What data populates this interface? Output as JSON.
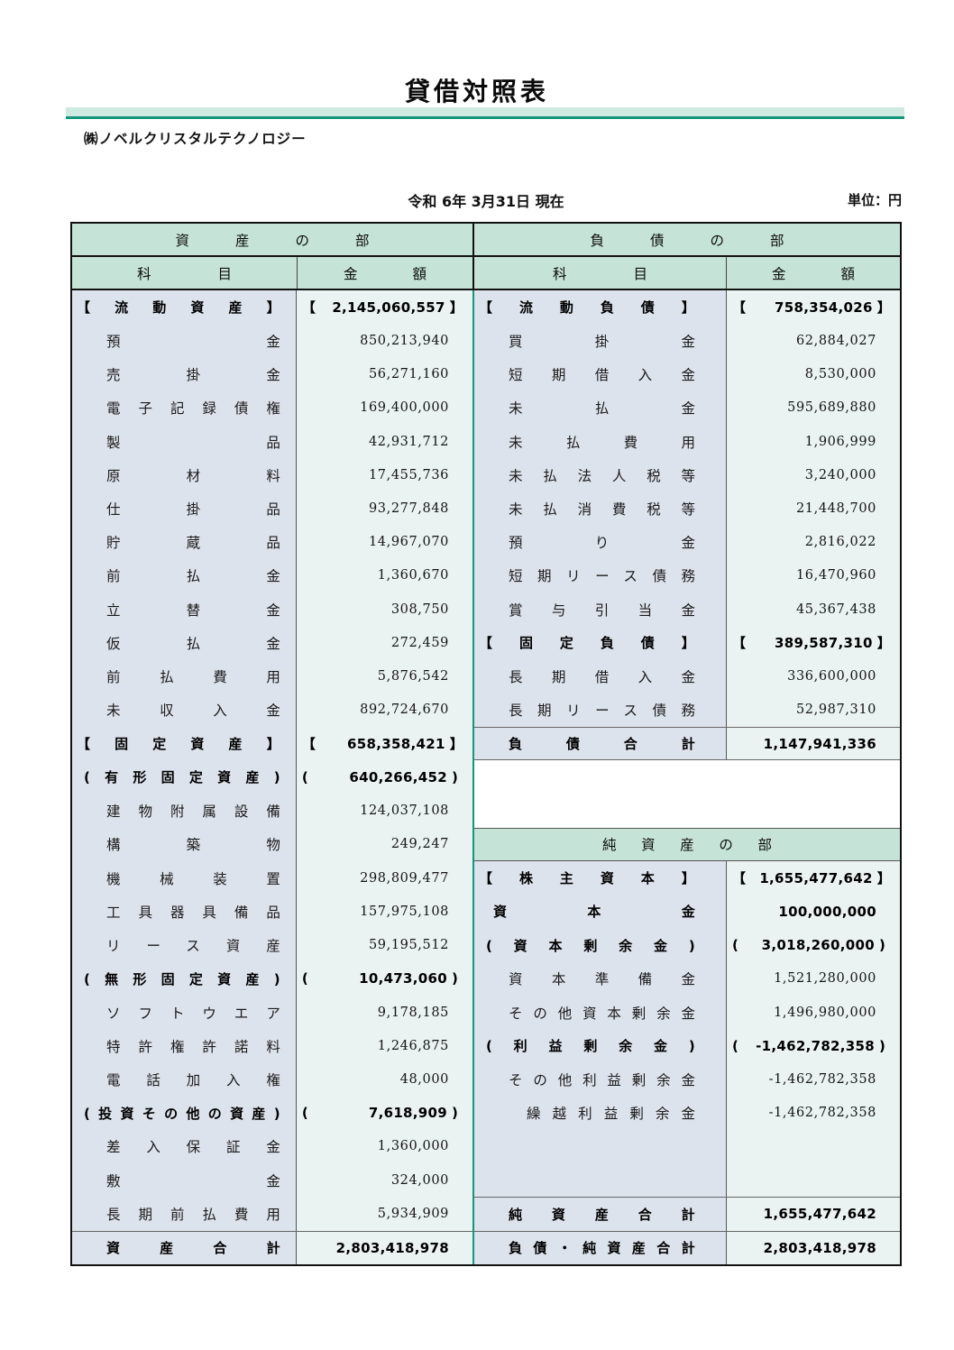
{
  "document": {
    "title": "貸借対照表",
    "company": "㈱ノベルクリスタルテクノロジー",
    "date": "令和 6年 3月31日 現在",
    "unit_label": "単位：円"
  },
  "table": {
    "assets": {
      "section_title": "資産の部",
      "account_header": "科目",
      "amount_header": "金額",
      "rows": [
        {
          "label": "【流動資産】",
          "open": "【",
          "value": "2,145,060,557",
          "close": "】",
          "indent": 0,
          "bold": true
        },
        {
          "label": "預金",
          "value": "850,213,940",
          "indent": 2
        },
        {
          "label": "売掛金",
          "value": "56,271,160",
          "indent": 2
        },
        {
          "label": "電子記録債権",
          "value": "169,400,000",
          "indent": 2
        },
        {
          "label": "製品",
          "value": "42,931,712",
          "indent": 2
        },
        {
          "label": "原材料",
          "value": "17,455,736",
          "indent": 2
        },
        {
          "label": "仕掛品",
          "value": "93,277,848",
          "indent": 2
        },
        {
          "label": "貯蔵品",
          "value": "14,967,070",
          "indent": 2
        },
        {
          "label": "前払金",
          "value": "1,360,670",
          "indent": 2
        },
        {
          "label": "立替金",
          "value": "308,750",
          "indent": 2
        },
        {
          "label": "仮払金",
          "value": "272,459",
          "indent": 2
        },
        {
          "label": "前払費用",
          "value": "5,876,542",
          "indent": 2
        },
        {
          "label": "未収入金",
          "value": "892,724,670",
          "indent": 2
        },
        {
          "label": "【固定資産】",
          "open": "【",
          "value": "658,358,421",
          "close": "】",
          "indent": 0,
          "bold": true
        },
        {
          "label": "(有形固定資産)",
          "open": "(",
          "value": "640,266,452",
          "close": ")",
          "indent": 1,
          "bold": true
        },
        {
          "label": "建物附属設備",
          "value": "124,037,108",
          "indent": 2
        },
        {
          "label": "構築物",
          "value": "249,247",
          "indent": 2
        },
        {
          "label": "機械装置",
          "value": "298,809,477",
          "indent": 2
        },
        {
          "label": "工具器具備品",
          "value": "157,975,108",
          "indent": 2
        },
        {
          "label": "リース資産",
          "value": "59,195,512",
          "indent": 2
        },
        {
          "label": "(無形固定資産)",
          "open": "(",
          "value": "10,473,060",
          "close": ")",
          "indent": 1,
          "bold": true
        },
        {
          "label": "ソフトウエア",
          "value": "9,178,185",
          "indent": 2
        },
        {
          "label": "特許権許諾料",
          "value": "1,246,875",
          "indent": 2
        },
        {
          "label": "電話加入権",
          "value": "48,000",
          "indent": 2
        },
        {
          "label": "(投資その他の資産)",
          "open": "(",
          "value": "7,618,909",
          "close": ")",
          "indent": 1,
          "bold": true
        },
        {
          "label": "差入保証金",
          "value": "1,360,000",
          "indent": 2
        },
        {
          "label": "敷金",
          "value": "324,000",
          "indent": 2
        },
        {
          "label": "長期前払費用",
          "value": "5,934,909",
          "indent": 2
        },
        {
          "label": "資産合計",
          "value": "2,803,418,978",
          "indent": 2,
          "bold": true,
          "total": true
        }
      ]
    },
    "liabilities": {
      "section_title": "負債の部",
      "account_header": "科目",
      "amount_header": "金額",
      "rows": [
        {
          "label": "【流動負債】",
          "open": "【",
          "value": "758,354,026",
          "close": "】",
          "indent": 0,
          "bold": true
        },
        {
          "label": "買掛金",
          "value": "62,884,027",
          "indent": 2
        },
        {
          "label": "短期借入金",
          "value": "8,530,000",
          "indent": 2
        },
        {
          "label": "未払金",
          "value": "595,689,880",
          "indent": 2
        },
        {
          "label": "未払費用",
          "value": "1,906,999",
          "indent": 2
        },
        {
          "label": "未払法人税等",
          "value": "3,240,000",
          "indent": 2
        },
        {
          "label": "未払消費税等",
          "value": "21,448,700",
          "indent": 2
        },
        {
          "label": "預り金",
          "value": "2,816,022",
          "indent": 2
        },
        {
          "label": "短期リース債務",
          "value": "16,470,960",
          "indent": 2
        },
        {
          "label": "賞与引当金",
          "value": "45,367,438",
          "indent": 2
        },
        {
          "label": "【固定負債】",
          "open": "【",
          "value": "389,587,310",
          "close": "】",
          "indent": 0,
          "bold": true
        },
        {
          "label": "長期借入金",
          "value": "336,600,000",
          "indent": 2
        },
        {
          "label": "長期リース債務",
          "value": "52,987,310",
          "indent": 2
        },
        {
          "label": "負債合計",
          "value": "1,147,941,336",
          "indent": 2,
          "bold": true,
          "total": true,
          "bottom_border": true
        }
      ]
    },
    "net_assets": {
      "section_title": "純資産の部",
      "rows": [
        {
          "label": "【株主資本】",
          "open": "【",
          "value": "1,655,477,642",
          "close": "】",
          "indent": 0,
          "bold": true
        },
        {
          "label": "資本金",
          "value": "100,000,000",
          "indent": 1.5,
          "bold": true
        },
        {
          "label": "(資本剰余金)",
          "open": "(",
          "value": "3,018,260,000",
          "close": ")",
          "indent": 1,
          "bold": true
        },
        {
          "label": "資本準備金",
          "value": "1,521,280,000",
          "indent": 2
        },
        {
          "label": "その他資本剰余金",
          "value": "1,496,980,000",
          "indent": 2
        },
        {
          "label": "(利益剰余金)",
          "open": "(",
          "value": "-1,462,782,358",
          "close": ")",
          "indent": 1,
          "bold": true
        },
        {
          "label": "その他利益剰余金",
          "value": "-1,462,782,358",
          "indent": 2
        },
        {
          "label": "繰越利益剰余金",
          "value": "-1,462,782,358",
          "indent": 3
        }
      ],
      "total_rows": [
        {
          "label": "純資産合計",
          "value": "1,655,477,642",
          "indent": 2,
          "bold": true,
          "total": true
        },
        {
          "label": "負債・純資産合計",
          "value": "2,803,418,978",
          "indent": 2,
          "bold": true,
          "total": true
        }
      ]
    }
  },
  "colors": {
    "header_bg": "#c5e3d7",
    "band_bg": "#cfeae1",
    "accent": "#12967b",
    "label_bg": "#dde3ed",
    "amount_bg": "#eaf3f1"
  }
}
